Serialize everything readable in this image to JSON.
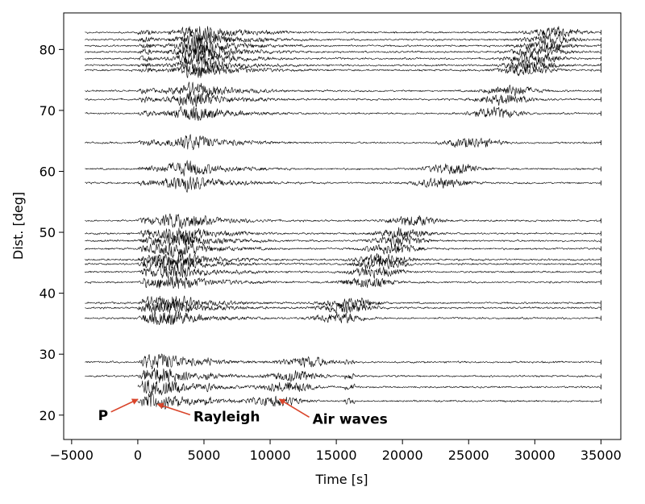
{
  "chart_data": {
    "type": "line",
    "title": "",
    "xlabel": "Time [s]",
    "ylabel": "Dist. [deg]",
    "xlim": [
      -5600,
      36500
    ],
    "ylim": [
      16,
      86
    ],
    "xticks": [
      -5000,
      0,
      5000,
      10000,
      15000,
      20000,
      25000,
      30000,
      35000
    ],
    "xtick_labels": [
      "−5000",
      "0",
      "5000",
      "10000",
      "15000",
      "20000",
      "25000",
      "30000",
      "35000"
    ],
    "yticks": [
      20,
      30,
      40,
      50,
      60,
      70,
      80
    ],
    "ytick_labels": [
      "20",
      "30",
      "40",
      "50",
      "60",
      "70",
      "80"
    ],
    "grid": false,
    "legend": "none",
    "trace_color": "#000000",
    "annotation_color": "#d9452b",
    "traces": [
      {
        "distance": 22.3,
        "start": 0,
        "end": 35000
      },
      {
        "distance": 24.6,
        "start": 0,
        "end": 35000
      },
      {
        "distance": 26.4,
        "start": -4000,
        "end": 35000
      },
      {
        "distance": 28.7,
        "start": -4000,
        "end": 35000
      },
      {
        "distance": 35.9,
        "start": -4000,
        "end": 35000
      },
      {
        "distance": 37.6,
        "start": -4000,
        "end": 35000
      },
      {
        "distance": 38.4,
        "start": -4000,
        "end": 35000
      },
      {
        "distance": 41.8,
        "start": -4000,
        "end": 35000
      },
      {
        "distance": 43.5,
        "start": -4000,
        "end": 35000
      },
      {
        "distance": 44.8,
        "start": -4000,
        "end": 35000
      },
      {
        "distance": 45.5,
        "start": -4000,
        "end": 35000
      },
      {
        "distance": 47.3,
        "start": -4000,
        "end": 35000
      },
      {
        "distance": 48.6,
        "start": -4000,
        "end": 35000
      },
      {
        "distance": 49.8,
        "start": -4000,
        "end": 35000
      },
      {
        "distance": 51.9,
        "start": -4000,
        "end": 35000
      },
      {
        "distance": 58.1,
        "start": -4000,
        "end": 35000
      },
      {
        "distance": 60.4,
        "start": -4000,
        "end": 35000
      },
      {
        "distance": 64.7,
        "start": -4000,
        "end": 35000
      },
      {
        "distance": 69.5,
        "start": -4000,
        "end": 35000
      },
      {
        "distance": 71.8,
        "start": -4000,
        "end": 35000
      },
      {
        "distance": 73.2,
        "start": -4000,
        "end": 35000
      },
      {
        "distance": 76.6,
        "start": -4000,
        "end": 35000
      },
      {
        "distance": 77.4,
        "start": -4000,
        "end": 35000
      },
      {
        "distance": 78.5,
        "start": -4000,
        "end": 35000
      },
      {
        "distance": 79.6,
        "start": -4000,
        "end": 35000
      },
      {
        "distance": 80.6,
        "start": -4000,
        "end": 35000
      },
      {
        "distance": 81.6,
        "start": -4000,
        "end": 35000
      },
      {
        "distance": 82.8,
        "start": -4000,
        "end": 35000
      }
    ],
    "phases": [
      {
        "name": "P",
        "velocity_time_per_deg": 0
      },
      {
        "name": "Rayleigh",
        "slope_s_per_deg": 55
      },
      {
        "name": "Air waves",
        "slope_s_per_deg": 348
      }
    ],
    "annotations": [
      {
        "text": "P",
        "x": -3000,
        "y": 19.2,
        "arrow_to_x": 0,
        "arrow_to_y": 22.6
      },
      {
        "text": "Rayleigh",
        "x": 4200,
        "y": 19.0,
        "arrow_to_x": 1500,
        "arrow_to_y": 21.8
      },
      {
        "text": "Air waves",
        "x": 13200,
        "y": 18.6,
        "arrow_to_x": 10700,
        "arrow_to_y": 22.6
      }
    ]
  }
}
